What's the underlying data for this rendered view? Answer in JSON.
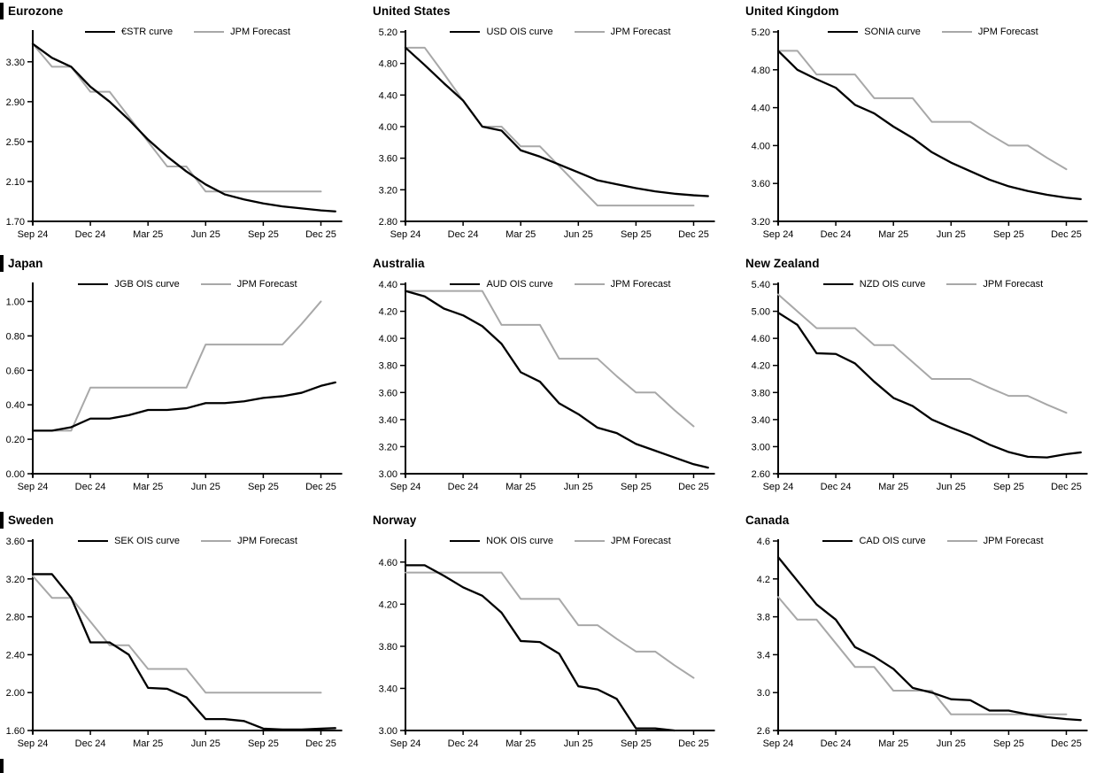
{
  "colors": {
    "ois": "#000000",
    "forecast": "#a8a8a8",
    "axis": "#000000",
    "text": "#000000"
  },
  "chart_data": [
    {
      "id": "eurozone",
      "type": "line",
      "title": "Eurozone",
      "title_marker": true,
      "x_tick_labels": [
        "Sep 24",
        "Dec 24",
        "Mar 25",
        "Jun 25",
        "Sep 25",
        "Dec 25"
      ],
      "x_tick_months": [
        0,
        3,
        6,
        9,
        12,
        15
      ],
      "y_ticks": [
        "1.70",
        "2.10",
        "2.50",
        "2.90",
        "3.30"
      ],
      "y_min": 1.7,
      "y_axis_top": 3.6,
      "grid": false,
      "legend_position": "top",
      "series": [
        {
          "name": "€STR curve",
          "role": "ois",
          "extend_past_axis": true,
          "values": [
            3.48,
            3.34,
            3.25,
            3.05,
            2.9,
            2.72,
            2.52,
            2.35,
            2.2,
            2.07,
            1.97,
            1.92,
            1.88,
            1.85,
            1.83,
            1.81
          ]
        },
        {
          "name": "JPM Forecast",
          "role": "forecast",
          "extend_past_axis": false,
          "values": [
            3.48,
            3.25,
            3.25,
            3.0,
            3.0,
            2.75,
            2.5,
            2.25,
            2.25,
            2.0,
            2.0,
            2.0,
            2.0,
            2.0,
            2.0,
            2.0
          ]
        }
      ]
    },
    {
      "id": "united-states",
      "type": "line",
      "title": "United States",
      "title_marker": false,
      "x_tick_labels": [
        "Sep 24",
        "Dec 24",
        "Mar 25",
        "Jun 25",
        "Sep 25",
        "Dec 25"
      ],
      "x_tick_months": [
        0,
        3,
        6,
        9,
        12,
        15
      ],
      "y_ticks": [
        "2.80",
        "3.20",
        "3.60",
        "4.00",
        "4.40",
        "4.80",
        "5.20"
      ],
      "y_min": 2.8,
      "y_axis_top": 5.2,
      "grid": false,
      "legend_position": "top",
      "series": [
        {
          "name": "USD OIS curve",
          "role": "ois",
          "extend_past_axis": true,
          "values": [
            5.0,
            4.78,
            4.55,
            4.33,
            4.0,
            3.95,
            3.7,
            3.62,
            3.52,
            3.42,
            3.32,
            3.27,
            3.22,
            3.18,
            3.15,
            3.13
          ]
        },
        {
          "name": "JPM Forecast",
          "role": "forecast",
          "extend_past_axis": false,
          "values": [
            5.0,
            5.0,
            4.67,
            4.33,
            4.0,
            4.0,
            3.75,
            3.75,
            3.5,
            3.25,
            3.0,
            3.0,
            3.0,
            3.0,
            3.0,
            3.0
          ]
        }
      ]
    },
    {
      "id": "united-kingdom",
      "type": "line",
      "title": "United Kingdom",
      "title_marker": false,
      "x_tick_labels": [
        "Sep 24",
        "Dec 24",
        "Mar 25",
        "Jun 25",
        "Sep 25",
        "Dec 25"
      ],
      "x_tick_months": [
        0,
        3,
        6,
        9,
        12,
        15
      ],
      "y_ticks": [
        "3.20",
        "3.60",
        "4.00",
        "4.40",
        "4.80",
        "5.20"
      ],
      "y_min": 3.2,
      "y_axis_top": 5.2,
      "grid": false,
      "legend_position": "top",
      "series": [
        {
          "name": "SONIA curve",
          "role": "ois",
          "extend_past_axis": true,
          "values": [
            5.0,
            4.8,
            4.7,
            4.61,
            4.43,
            4.34,
            4.2,
            4.08,
            3.93,
            3.82,
            3.73,
            3.64,
            3.57,
            3.52,
            3.48,
            3.45
          ]
        },
        {
          "name": "JPM Forecast",
          "role": "forecast",
          "extend_past_axis": false,
          "values": [
            5.0,
            5.0,
            4.75,
            4.75,
            4.75,
            4.5,
            4.5,
            4.5,
            4.25,
            4.25,
            4.25,
            4.12,
            4.0,
            4.0,
            3.87,
            3.75
          ]
        }
      ]
    },
    {
      "id": "japan",
      "type": "line",
      "title": "Japan",
      "title_marker": true,
      "x_tick_labels": [
        "Sep 24",
        "Dec 24",
        "Mar 25",
        "Jun 25",
        "Sep 25",
        "Dec 25"
      ],
      "x_tick_months": [
        0,
        3,
        6,
        9,
        12,
        15
      ],
      "y_ticks": [
        "0.00",
        "0.20",
        "0.40",
        "0.60",
        "0.80",
        "1.00"
      ],
      "y_min": 0.0,
      "y_axis_top": 1.1,
      "grid": false,
      "legend_position": "top",
      "series": [
        {
          "name": "JGB OIS curve",
          "role": "ois",
          "extend_past_axis": true,
          "values": [
            0.25,
            0.25,
            0.27,
            0.32,
            0.32,
            0.34,
            0.37,
            0.37,
            0.38,
            0.41,
            0.41,
            0.42,
            0.44,
            0.45,
            0.47,
            0.51
          ]
        },
        {
          "name": "JPM Forecast",
          "role": "forecast",
          "extend_past_axis": false,
          "values": [
            0.25,
            0.25,
            0.25,
            0.5,
            0.5,
            0.5,
            0.5,
            0.5,
            0.5,
            0.75,
            0.75,
            0.75,
            0.75,
            0.75,
            0.87,
            1.0
          ]
        }
      ]
    },
    {
      "id": "australia",
      "type": "line",
      "title": "Australia",
      "title_marker": false,
      "x_tick_labels": [
        "Sep 24",
        "Dec 24",
        "Mar 25",
        "Jun 25",
        "Sep 25",
        "Dec 25"
      ],
      "x_tick_months": [
        0,
        3,
        6,
        9,
        12,
        15
      ],
      "y_ticks": [
        "3.00",
        "3.20",
        "3.40",
        "3.60",
        "3.80",
        "4.00",
        "4.20",
        "4.40"
      ],
      "y_min": 3.0,
      "y_axis_top": 4.4,
      "grid": false,
      "legend_position": "top",
      "series": [
        {
          "name": "AUD OIS curve",
          "role": "ois",
          "extend_past_axis": true,
          "values": [
            4.35,
            4.31,
            4.22,
            4.17,
            4.09,
            3.96,
            3.75,
            3.68,
            3.52,
            3.44,
            3.34,
            3.3,
            3.22,
            3.17,
            3.12,
            3.07
          ]
        },
        {
          "name": "JPM Forecast",
          "role": "forecast",
          "extend_past_axis": false,
          "values": [
            4.35,
            4.35,
            4.35,
            4.35,
            4.35,
            4.1,
            4.1,
            4.1,
            3.85,
            3.85,
            3.85,
            3.72,
            3.6,
            3.6,
            3.47,
            3.35
          ]
        }
      ]
    },
    {
      "id": "new-zealand",
      "type": "line",
      "title": "New Zealand",
      "title_marker": false,
      "x_tick_labels": [
        "Sep 24",
        "Dec 24",
        "Mar 25",
        "Jun 25",
        "Sep 25",
        "Dec 25"
      ],
      "x_tick_months": [
        0,
        3,
        6,
        9,
        12,
        15
      ],
      "y_ticks": [
        "2.60",
        "3.00",
        "3.40",
        "3.80",
        "4.20",
        "4.60",
        "5.00",
        "5.40"
      ],
      "y_min": 2.6,
      "y_axis_top": 5.4,
      "grid": false,
      "legend_position": "top",
      "series": [
        {
          "name": "NZD OIS curve",
          "role": "ois",
          "extend_past_axis": true,
          "values": [
            4.98,
            4.8,
            4.38,
            4.37,
            4.23,
            3.96,
            3.72,
            3.6,
            3.4,
            3.28,
            3.17,
            3.03,
            2.92,
            2.85,
            2.84,
            2.89
          ]
        },
        {
          "name": "JPM Forecast",
          "role": "forecast",
          "extend_past_axis": false,
          "values": [
            5.25,
            5.0,
            4.75,
            4.75,
            4.75,
            4.5,
            4.5,
            4.25,
            4.0,
            4.0,
            4.0,
            3.87,
            3.75,
            3.75,
            3.62,
            3.5
          ]
        }
      ]
    },
    {
      "id": "sweden",
      "type": "line",
      "title": "Sweden",
      "title_marker": true,
      "x_tick_labels": [
        "Sep 24",
        "Dec 24",
        "Mar 25",
        "Jun 25",
        "Sep 25",
        "Dec 25"
      ],
      "x_tick_months": [
        0,
        3,
        6,
        9,
        12,
        15
      ],
      "y_ticks": [
        "1.60",
        "2.00",
        "2.40",
        "2.80",
        "3.20",
        "3.60"
      ],
      "y_min": 1.6,
      "y_axis_top": 3.6,
      "grid": false,
      "legend_position": "top",
      "series": [
        {
          "name": "SEK OIS curve",
          "role": "ois",
          "extend_past_axis": true,
          "values": [
            3.25,
            3.25,
            3.0,
            2.53,
            2.53,
            2.4,
            2.05,
            2.04,
            1.95,
            1.72,
            1.72,
            1.7,
            1.62,
            1.61,
            1.61,
            1.62
          ]
        },
        {
          "name": "JPM Forecast",
          "role": "forecast",
          "extend_past_axis": false,
          "values": [
            3.23,
            3.0,
            3.0,
            2.75,
            2.5,
            2.5,
            2.25,
            2.25,
            2.25,
            2.0,
            2.0,
            2.0,
            2.0,
            2.0,
            2.0,
            2.0
          ]
        }
      ]
    },
    {
      "id": "norway",
      "type": "line",
      "title": "Norway",
      "title_marker": false,
      "x_tick_labels": [
        "Sep 24",
        "Dec 24",
        "Mar 25",
        "Jun 25",
        "Sep 25",
        "Dec 25"
      ],
      "x_tick_months": [
        0,
        3,
        6,
        9,
        12,
        15
      ],
      "y_ticks": [
        "3.00",
        "3.40",
        "3.80",
        "4.20",
        "4.60"
      ],
      "y_min": 3.0,
      "y_axis_top": 4.8,
      "grid": false,
      "legend_position": "top",
      "series": [
        {
          "name": "NOK OIS curve",
          "role": "ois",
          "extend_past_axis": false,
          "values": [
            4.57,
            4.57,
            4.47,
            4.36,
            4.28,
            4.12,
            3.85,
            3.84,
            3.73,
            3.42,
            3.39,
            3.3,
            3.02,
            3.02,
            3.0
          ]
        },
        {
          "name": "JPM Forecast",
          "role": "forecast",
          "extend_past_axis": false,
          "values": [
            4.5,
            4.5,
            4.5,
            4.5,
            4.5,
            4.5,
            4.25,
            4.25,
            4.25,
            4.0,
            4.0,
            3.87,
            3.75,
            3.75,
            3.62,
            3.5
          ]
        }
      ]
    },
    {
      "id": "canada",
      "type": "line",
      "title": "Canada",
      "title_marker": false,
      "x_tick_labels": [
        "Sep 24",
        "Dec 24",
        "Mar 25",
        "Jun 25",
        "Sep 25",
        "Dec 25"
      ],
      "x_tick_months": [
        0,
        3,
        6,
        9,
        12,
        15
      ],
      "y_ticks": [
        "2.6",
        "3.0",
        "3.4",
        "3.8",
        "4.2",
        "4.6"
      ],
      "y_min": 2.6,
      "y_axis_top": 4.6,
      "grid": false,
      "legend_position": "top",
      "series": [
        {
          "name": "CAD OIS curve",
          "role": "ois",
          "extend_past_axis": true,
          "values": [
            4.43,
            4.18,
            3.93,
            3.77,
            3.48,
            3.38,
            3.25,
            3.05,
            3.0,
            2.93,
            2.92,
            2.81,
            2.81,
            2.77,
            2.74,
            2.72
          ]
        },
        {
          "name": "JPM Forecast",
          "role": "forecast",
          "extend_past_axis": false,
          "values": [
            4.01,
            3.77,
            3.77,
            3.52,
            3.27,
            3.27,
            3.02,
            3.02,
            3.02,
            2.77,
            2.77,
            2.77,
            2.77,
            2.77,
            2.77,
            2.77
          ]
        }
      ]
    }
  ]
}
